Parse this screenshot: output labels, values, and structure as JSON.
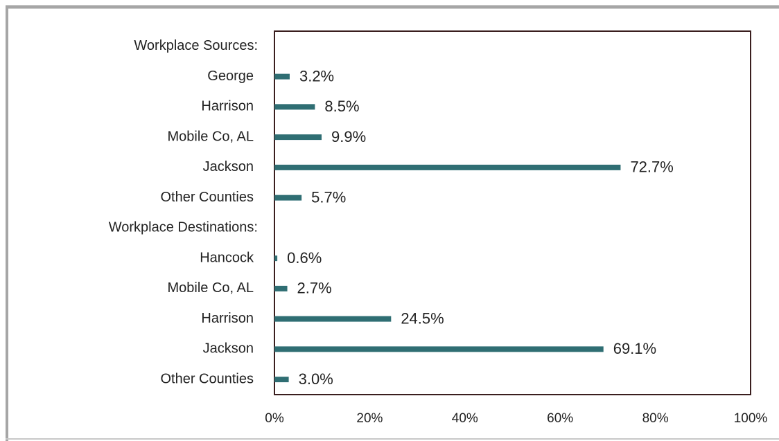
{
  "chart_data": {
    "type": "hbar",
    "categories": [
      "Workplace Sources:",
      "George",
      "Harrison",
      "Mobile Co, AL",
      "Jackson",
      "Other Counties",
      "Workplace Destinations:",
      "Hancock",
      "Mobile Co, AL",
      "Harrison",
      "Jackson",
      "Other Counties"
    ],
    "values": [
      null,
      3.2,
      8.5,
      9.9,
      72.7,
      5.7,
      null,
      0.6,
      2.7,
      24.5,
      69.1,
      3.0
    ],
    "value_labels": [
      null,
      "3.2%",
      "8.5%",
      "9.9%",
      "72.7%",
      "5.7%",
      null,
      "0.6%",
      "2.7%",
      "24.5%",
      "69.1%",
      "3.0%"
    ],
    "color": "#2f6e73",
    "xlim": [
      0,
      100
    ],
    "xticks": [
      {
        "value": 0,
        "label": "0%"
      },
      {
        "value": 20,
        "label": "20%"
      },
      {
        "value": 40,
        "label": "40%"
      },
      {
        "value": 60,
        "label": "60%"
      },
      {
        "value": 80,
        "label": "80%"
      },
      {
        "value": 100,
        "label": "100%"
      }
    ],
    "grid": false
  }
}
